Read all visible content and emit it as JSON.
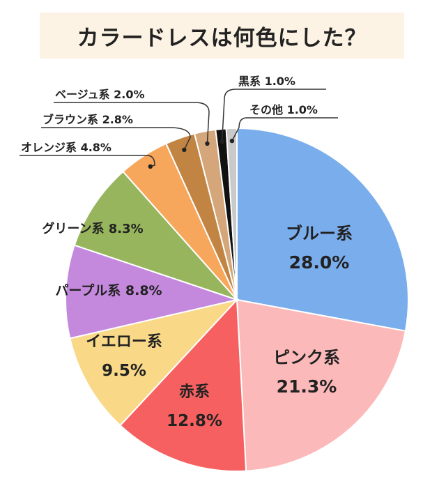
{
  "chart_data": {
    "type": "pie",
    "title": "カラードレスは何色にした？",
    "categories": [
      "ブルー系",
      "ピンク系",
      "赤系",
      "イエロー系",
      "パープル系",
      "グリーン系",
      "オレンジ系",
      "ブラウン系",
      "ベージュ系",
      "黒系",
      "その他"
    ],
    "values": [
      28.0,
      21.3,
      12.8,
      9.5,
      8.8,
      8.3,
      4.8,
      2.8,
      2.0,
      1.0,
      1.0
    ],
    "value_labels": [
      "28.0%",
      "21.3%",
      "12.8%",
      "9.5%",
      "8.8%",
      "8.3%",
      "4.8%",
      "2.8%",
      "2.0%",
      "1.0%",
      "1.0%"
    ],
    "colors": [
      "#7aadec",
      "#fcb9b9",
      "#f76060",
      "#f9d988",
      "#c488dd",
      "#97b55d",
      "#f7a75b",
      "#c18443",
      "#d4a679",
      "#111111",
      "#c9c9c9"
    ],
    "start_angle_deg": 0,
    "direction": "clockwise"
  }
}
